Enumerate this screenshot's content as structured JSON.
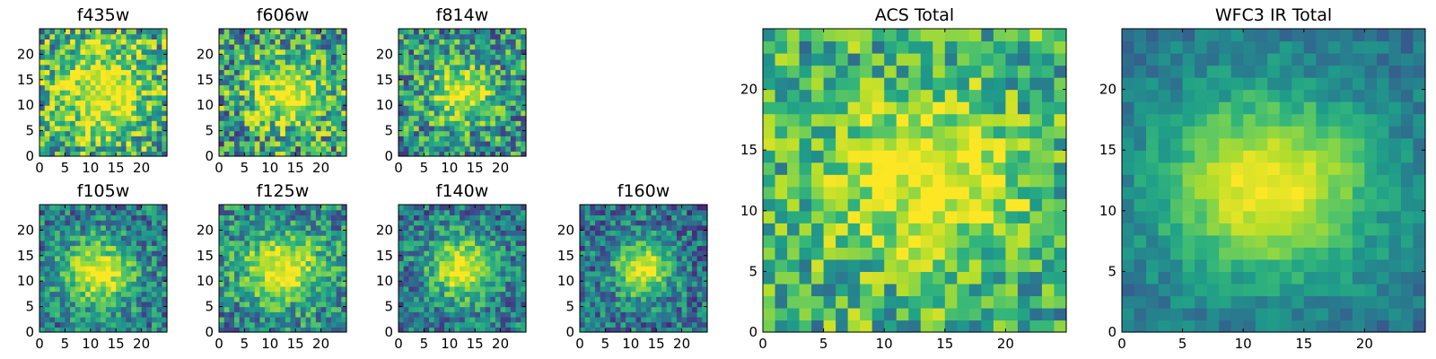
{
  "chart_data": [
    {
      "type": "heatmap",
      "title": "f435w",
      "xlabel": "",
      "ylabel": "",
      "xlim": [
        0,
        25
      ],
      "ylim": [
        0,
        25
      ],
      "grid": false,
      "colormap": "viridis",
      "grid_size": 25,
      "xticks": [
        0,
        5,
        10,
        15,
        20
      ],
      "yticks": [
        0,
        5,
        10,
        15,
        20
      ],
      "peak": {
        "x": 12,
        "y": 12
      },
      "source_extent": [
        7,
        7
      ],
      "noise_level": 0.42,
      "background_level": 0.58
    },
    {
      "type": "heatmap",
      "title": "f606w",
      "xlabel": "",
      "ylabel": "",
      "xlim": [
        0,
        25
      ],
      "ylim": [
        0,
        25
      ],
      "grid": false,
      "colormap": "viridis",
      "grid_size": 25,
      "xticks": [
        0,
        5,
        10,
        15,
        20
      ],
      "yticks": [
        0,
        5,
        10,
        15,
        20
      ],
      "peak": {
        "x": 13,
        "y": 12
      },
      "source_extent": [
        6,
        5
      ],
      "noise_level": 0.42,
      "background_level": 0.52
    },
    {
      "type": "heatmap",
      "title": "f814w",
      "xlabel": "",
      "ylabel": "",
      "xlim": [
        0,
        25
      ],
      "ylim": [
        0,
        25
      ],
      "grid": false,
      "colormap": "viridis",
      "grid_size": 25,
      "xticks": [
        0,
        5,
        10,
        15,
        20
      ],
      "yticks": [
        0,
        5,
        10,
        15,
        20
      ],
      "peak": {
        "x": 12,
        "y": 12
      },
      "source_extent": [
        4.5,
        4
      ],
      "noise_level": 0.36,
      "background_level": 0.5
    },
    {
      "type": "heatmap",
      "title": "f105w",
      "xlabel": "",
      "ylabel": "",
      "xlim": [
        0,
        25
      ],
      "ylim": [
        0,
        25
      ],
      "grid": false,
      "colormap": "viridis",
      "grid_size": 25,
      "xticks": [
        0,
        5,
        10,
        15,
        20
      ],
      "yticks": [
        0,
        5,
        10,
        15,
        20
      ],
      "peak": {
        "x": 11,
        "y": 11
      },
      "source_extent": [
        5,
        4.5
      ],
      "noise_level": 0.28,
      "background_level": 0.42
    },
    {
      "type": "heatmap",
      "title": "f125w",
      "xlabel": "",
      "ylabel": "",
      "xlim": [
        0,
        25
      ],
      "ylim": [
        0,
        25
      ],
      "grid": false,
      "colormap": "viridis",
      "grid_size": 25,
      "xticks": [
        0,
        5,
        10,
        15,
        20
      ],
      "yticks": [
        0,
        5,
        10,
        15,
        20
      ],
      "peak": {
        "x": 12,
        "y": 12
      },
      "source_extent": [
        6,
        5
      ],
      "noise_level": 0.3,
      "background_level": 0.45
    },
    {
      "type": "heatmap",
      "title": "f140w",
      "xlabel": "",
      "ylabel": "",
      "xlim": [
        0,
        25
      ],
      "ylim": [
        0,
        25
      ],
      "grid": false,
      "colormap": "viridis",
      "grid_size": 25,
      "xticks": [
        0,
        5,
        10,
        15,
        20
      ],
      "yticks": [
        0,
        5,
        10,
        15,
        20
      ],
      "peak": {
        "x": 12,
        "y": 12
      },
      "source_extent": [
        4.5,
        4.5
      ],
      "noise_level": 0.28,
      "background_level": 0.4
    },
    {
      "type": "heatmap",
      "title": "f160w",
      "xlabel": "",
      "ylabel": "",
      "xlim": [
        0,
        25
      ],
      "ylim": [
        0,
        25
      ],
      "grid": false,
      "colormap": "viridis",
      "grid_size": 25,
      "xticks": [
        0,
        5,
        10,
        15,
        20
      ],
      "yticks": [
        0,
        5,
        10,
        15,
        20
      ],
      "peak": {
        "x": 12,
        "y": 12
      },
      "source_extent": [
        4,
        4
      ],
      "noise_level": 0.28,
      "background_level": 0.38
    },
    {
      "type": "heatmap",
      "title": "ACS Total",
      "xlabel": "",
      "ylabel": "",
      "xlim": [
        0,
        25
      ],
      "ylim": [
        0,
        25
      ],
      "grid": false,
      "colormap": "viridis",
      "grid_size": 25,
      "xticks": [
        0,
        5,
        10,
        15,
        20
      ],
      "yticks": [
        0,
        5,
        10,
        15,
        20
      ],
      "peak": {
        "x": 13,
        "y": 12
      },
      "source_extent": [
        6,
        5
      ],
      "noise_level": 0.3,
      "background_level": 0.62
    },
    {
      "type": "heatmap",
      "title": "WFC3 IR Total",
      "xlabel": "",
      "ylabel": "",
      "xlim": [
        0,
        25
      ],
      "ylim": [
        0,
        25
      ],
      "grid": false,
      "colormap": "viridis",
      "grid_size": 25,
      "xticks": [
        0,
        5,
        10,
        15,
        20
      ],
      "yticks": [
        0,
        5,
        10,
        15,
        20
      ],
      "peak": {
        "x": 11.5,
        "y": 11.5
      },
      "source_extent": [
        6.5,
        5.5
      ],
      "noise_level": 0.12,
      "background_level": 0.38
    }
  ],
  "colors": {
    "viridis_stops": [
      "#440154",
      "#482878",
      "#3e4989",
      "#31688e",
      "#26828e",
      "#1f9e89",
      "#35b779",
      "#6ece58",
      "#b5de2b",
      "#fde725"
    ],
    "axis_line": "#000000",
    "text": "#000000",
    "background": "#ffffff"
  }
}
